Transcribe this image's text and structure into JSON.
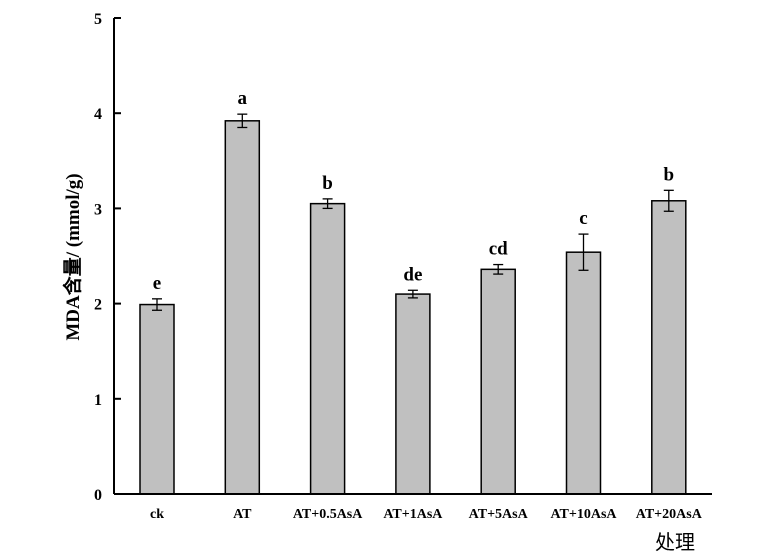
{
  "chart_data": {
    "type": "bar",
    "categories": [
      "ck",
      "AT",
      "AT+0.5AsA",
      "AT+1AsA",
      "AT+5AsA",
      "AT+10AsA",
      "AT+20AsA"
    ],
    "values": [
      1.99,
      3.92,
      3.05,
      2.1,
      2.36,
      2.54,
      3.08
    ],
    "errors": [
      0.06,
      0.07,
      0.05,
      0.04,
      0.05,
      0.19,
      0.11
    ],
    "significance": [
      "e",
      "a",
      "b",
      "de",
      "cd",
      "c",
      "b"
    ],
    "title": "",
    "xlabel": "处理",
    "ylabel": "MDA含量/ (mmol/g)",
    "ylim": [
      0,
      5
    ],
    "yticks": [
      0,
      1,
      2,
      3,
      4,
      5
    ],
    "grid": false,
    "bar_color": "#c0c0c0",
    "edge_color": "#000000"
  }
}
